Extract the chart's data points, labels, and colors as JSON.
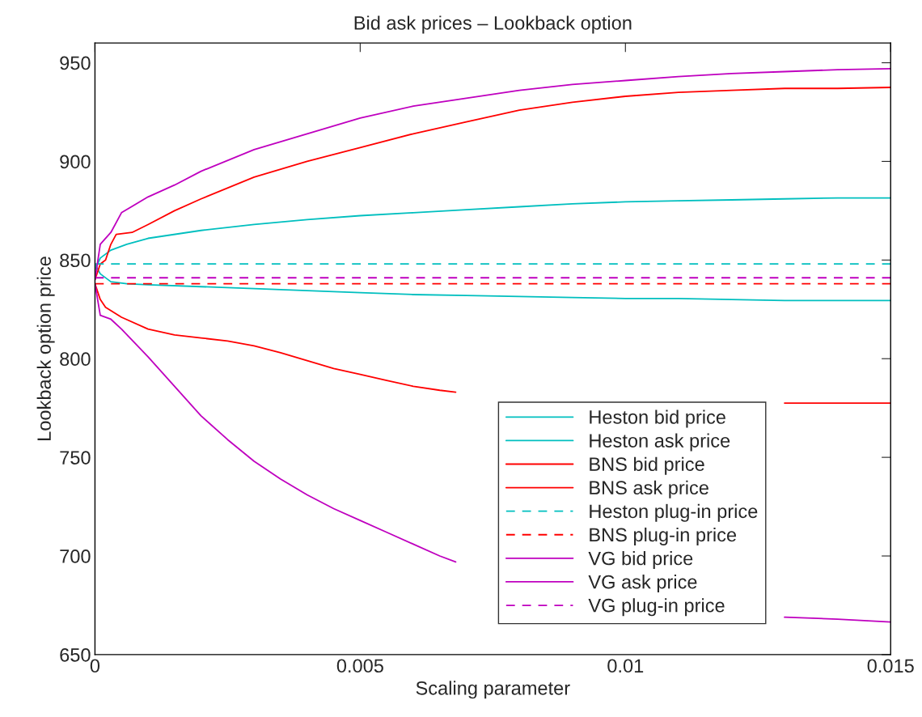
{
  "chart_data": {
    "type": "line",
    "title": "Bid ask prices – Lookback option",
    "xlabel": "Scaling parameter",
    "ylabel": "Lookback option price",
    "xlim": [
      0,
      0.015
    ],
    "xticks": [
      0,
      0.005,
      0.01,
      0.015
    ],
    "ylim": [
      650,
      960
    ],
    "yticks": [
      650,
      700,
      750,
      800,
      850,
      900,
      950
    ],
    "grid": false,
    "legend": "bottom right",
    "series": [
      {
        "name": "Heston bid price",
        "color": "#00bfbf",
        "line_style": "solid",
        "x": [
          0,
          0.0001,
          0.0003,
          0.0006,
          0.001,
          0.002,
          0.003,
          0.004,
          0.005,
          0.006,
          0.007,
          0.008,
          0.009,
          0.01,
          0.011,
          0.012,
          0.013,
          0.014,
          0.015
        ],
        "values": [
          848,
          843,
          839,
          838,
          837.5,
          836.5,
          835.5,
          834.5,
          833.5,
          832.5,
          832,
          831.5,
          831,
          830.5,
          830.5,
          830,
          829.5,
          829.5,
          829.5
        ]
      },
      {
        "name": "Heston ask price",
        "color": "#00bfbf",
        "line_style": "solid",
        "x": [
          0,
          0.0001,
          0.0003,
          0.0006,
          0.001,
          0.002,
          0.003,
          0.004,
          0.005,
          0.006,
          0.007,
          0.008,
          0.009,
          0.01,
          0.011,
          0.012,
          0.013,
          0.014,
          0.015
        ],
        "values": [
          845,
          851,
          855,
          858,
          861,
          865,
          868,
          870.5,
          872.5,
          874,
          875.5,
          877,
          878.5,
          879.5,
          880,
          880.5,
          881,
          881.5,
          881.5
        ]
      },
      {
        "name": "BNS bid price",
        "color": "#ff0000",
        "line_style": "solid",
        "x": [
          0,
          0.0001,
          0.0002,
          0.0005,
          0.001,
          0.0015,
          0.002,
          0.0025,
          0.003,
          0.0035,
          0.004,
          0.0045,
          0.005,
          0.0055,
          0.006,
          0.0065,
          0.0068,
          0.008,
          0.01,
          0.012,
          0.013,
          0.014,
          0.015
        ],
        "values": [
          838,
          830,
          826,
          821,
          815,
          812,
          810.5,
          809,
          806.5,
          803,
          799,
          795,
          792,
          789,
          786,
          784,
          783,
          null,
          null,
          null,
          777.5,
          777.5,
          777.5
        ]
      },
      {
        "name": "BNS ask price",
        "color": "#ff0000",
        "line_style": "solid",
        "x": [
          0,
          0.0001,
          0.0002,
          0.0003,
          0.0004,
          0.0007,
          0.001,
          0.0015,
          0.002,
          0.003,
          0.004,
          0.005,
          0.006,
          0.007,
          0.008,
          0.009,
          0.01,
          0.011,
          0.012,
          0.013,
          0.014,
          0.015
        ],
        "values": [
          840,
          848,
          850,
          858,
          863,
          864,
          868,
          875,
          881,
          892,
          900,
          907,
          914,
          920,
          926,
          930,
          933,
          935,
          936,
          937,
          937,
          937.5
        ]
      },
      {
        "name": "Heston plug-in price",
        "color": "#00bfbf",
        "line_style": "dashed",
        "x": [
          0,
          0.015
        ],
        "values": [
          848,
          848
        ]
      },
      {
        "name": "BNS plug-in price",
        "color": "#ff0000",
        "line_style": "dashed",
        "x": [
          0,
          0.015
        ],
        "values": [
          838,
          838
        ]
      },
      {
        "name": "VG bid price",
        "color": "#bf00bf",
        "line_style": "solid",
        "x": [
          0,
          0.0001,
          0.0003,
          0.0005,
          0.001,
          0.0015,
          0.002,
          0.0025,
          0.003,
          0.0035,
          0.004,
          0.0045,
          0.005,
          0.0055,
          0.006,
          0.0065,
          0.0068,
          0.008,
          0.01,
          0.012,
          0.013,
          0.014,
          0.015
        ],
        "values": [
          838,
          822,
          820,
          815,
          801,
          786,
          771,
          759,
          748,
          739,
          731,
          724,
          718,
          712,
          706,
          700,
          697,
          null,
          null,
          null,
          669,
          668,
          666.5
        ]
      },
      {
        "name": "VG ask price",
        "color": "#bf00bf",
        "line_style": "solid",
        "x": [
          0,
          0.0001,
          0.0003,
          0.0005,
          0.001,
          0.0015,
          0.002,
          0.003,
          0.004,
          0.005,
          0.006,
          0.007,
          0.008,
          0.009,
          0.01,
          0.011,
          0.012,
          0.013,
          0.014,
          0.015
        ],
        "values": [
          840,
          858,
          864,
          874,
          882,
          888,
          895,
          906,
          914,
          922,
          928,
          932,
          936,
          939,
          941,
          943,
          944.5,
          945.5,
          946.5,
          947
        ]
      },
      {
        "name": "VG plug-in price",
        "color": "#bf00bf",
        "line_style": "dashed",
        "x": [
          0,
          0.015
        ],
        "values": [
          841,
          841
        ]
      }
    ]
  }
}
